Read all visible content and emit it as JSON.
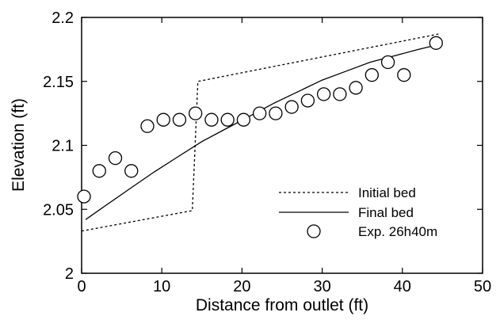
{
  "chart_data": {
    "type": "line",
    "title": "",
    "xlabel": "Distance from outlet (ft)",
    "ylabel": "Elevation (ft)",
    "xlim": [
      0,
      50
    ],
    "ylim": [
      2.0,
      2.2
    ],
    "x_ticks": [
      0,
      10,
      20,
      30,
      40,
      50
    ],
    "y_ticks": [
      2.0,
      2.05,
      2.1,
      2.15,
      2.2
    ],
    "x_tick_labels": [
      "0",
      "10",
      "20",
      "30",
      "40",
      "50"
    ],
    "y_tick_labels": [
      "2",
      "2.05",
      "2.1",
      "2.15",
      "2.2"
    ],
    "grid": false,
    "legend_position": "bottom-right",
    "series": [
      {
        "name": "Initial bed",
        "style": "dotted-line",
        "color": "#000000",
        "x": [
          0.0,
          13.8,
          14.5,
          44.5
        ],
        "y": [
          2.033,
          2.049,
          2.15,
          2.187
        ]
      },
      {
        "name": "Final bed",
        "style": "solid-line",
        "color": "#000000",
        "x": [
          0.5,
          3,
          6,
          9,
          12,
          15,
          18,
          21,
          24,
          27,
          30,
          33,
          36,
          39,
          42,
          44
        ],
        "y": [
          2.042,
          2.053,
          2.066,
          2.079,
          2.091,
          2.103,
          2.113,
          2.123,
          2.133,
          2.142,
          2.151,
          2.158,
          2.165,
          2.17,
          2.175,
          2.178
        ]
      },
      {
        "name": "Exp. 26h40m",
        "style": "open-circle-markers",
        "color": "#000000",
        "x": [
          0.3,
          2.2,
          4.2,
          6.2,
          8.2,
          10.2,
          12.2,
          14.2,
          16.2,
          18.2,
          20.2,
          22.2,
          24.2,
          26.2,
          28.2,
          30.2,
          32.2,
          34.2,
          36.2,
          38.2,
          40.2,
          44.2
        ],
        "y": [
          2.06,
          2.08,
          2.09,
          2.08,
          2.115,
          2.12,
          2.12,
          2.125,
          2.12,
          2.12,
          2.12,
          2.125,
          2.125,
          2.13,
          2.135,
          2.14,
          2.14,
          2.145,
          2.155,
          2.165,
          2.155,
          2.18
        ]
      }
    ]
  }
}
